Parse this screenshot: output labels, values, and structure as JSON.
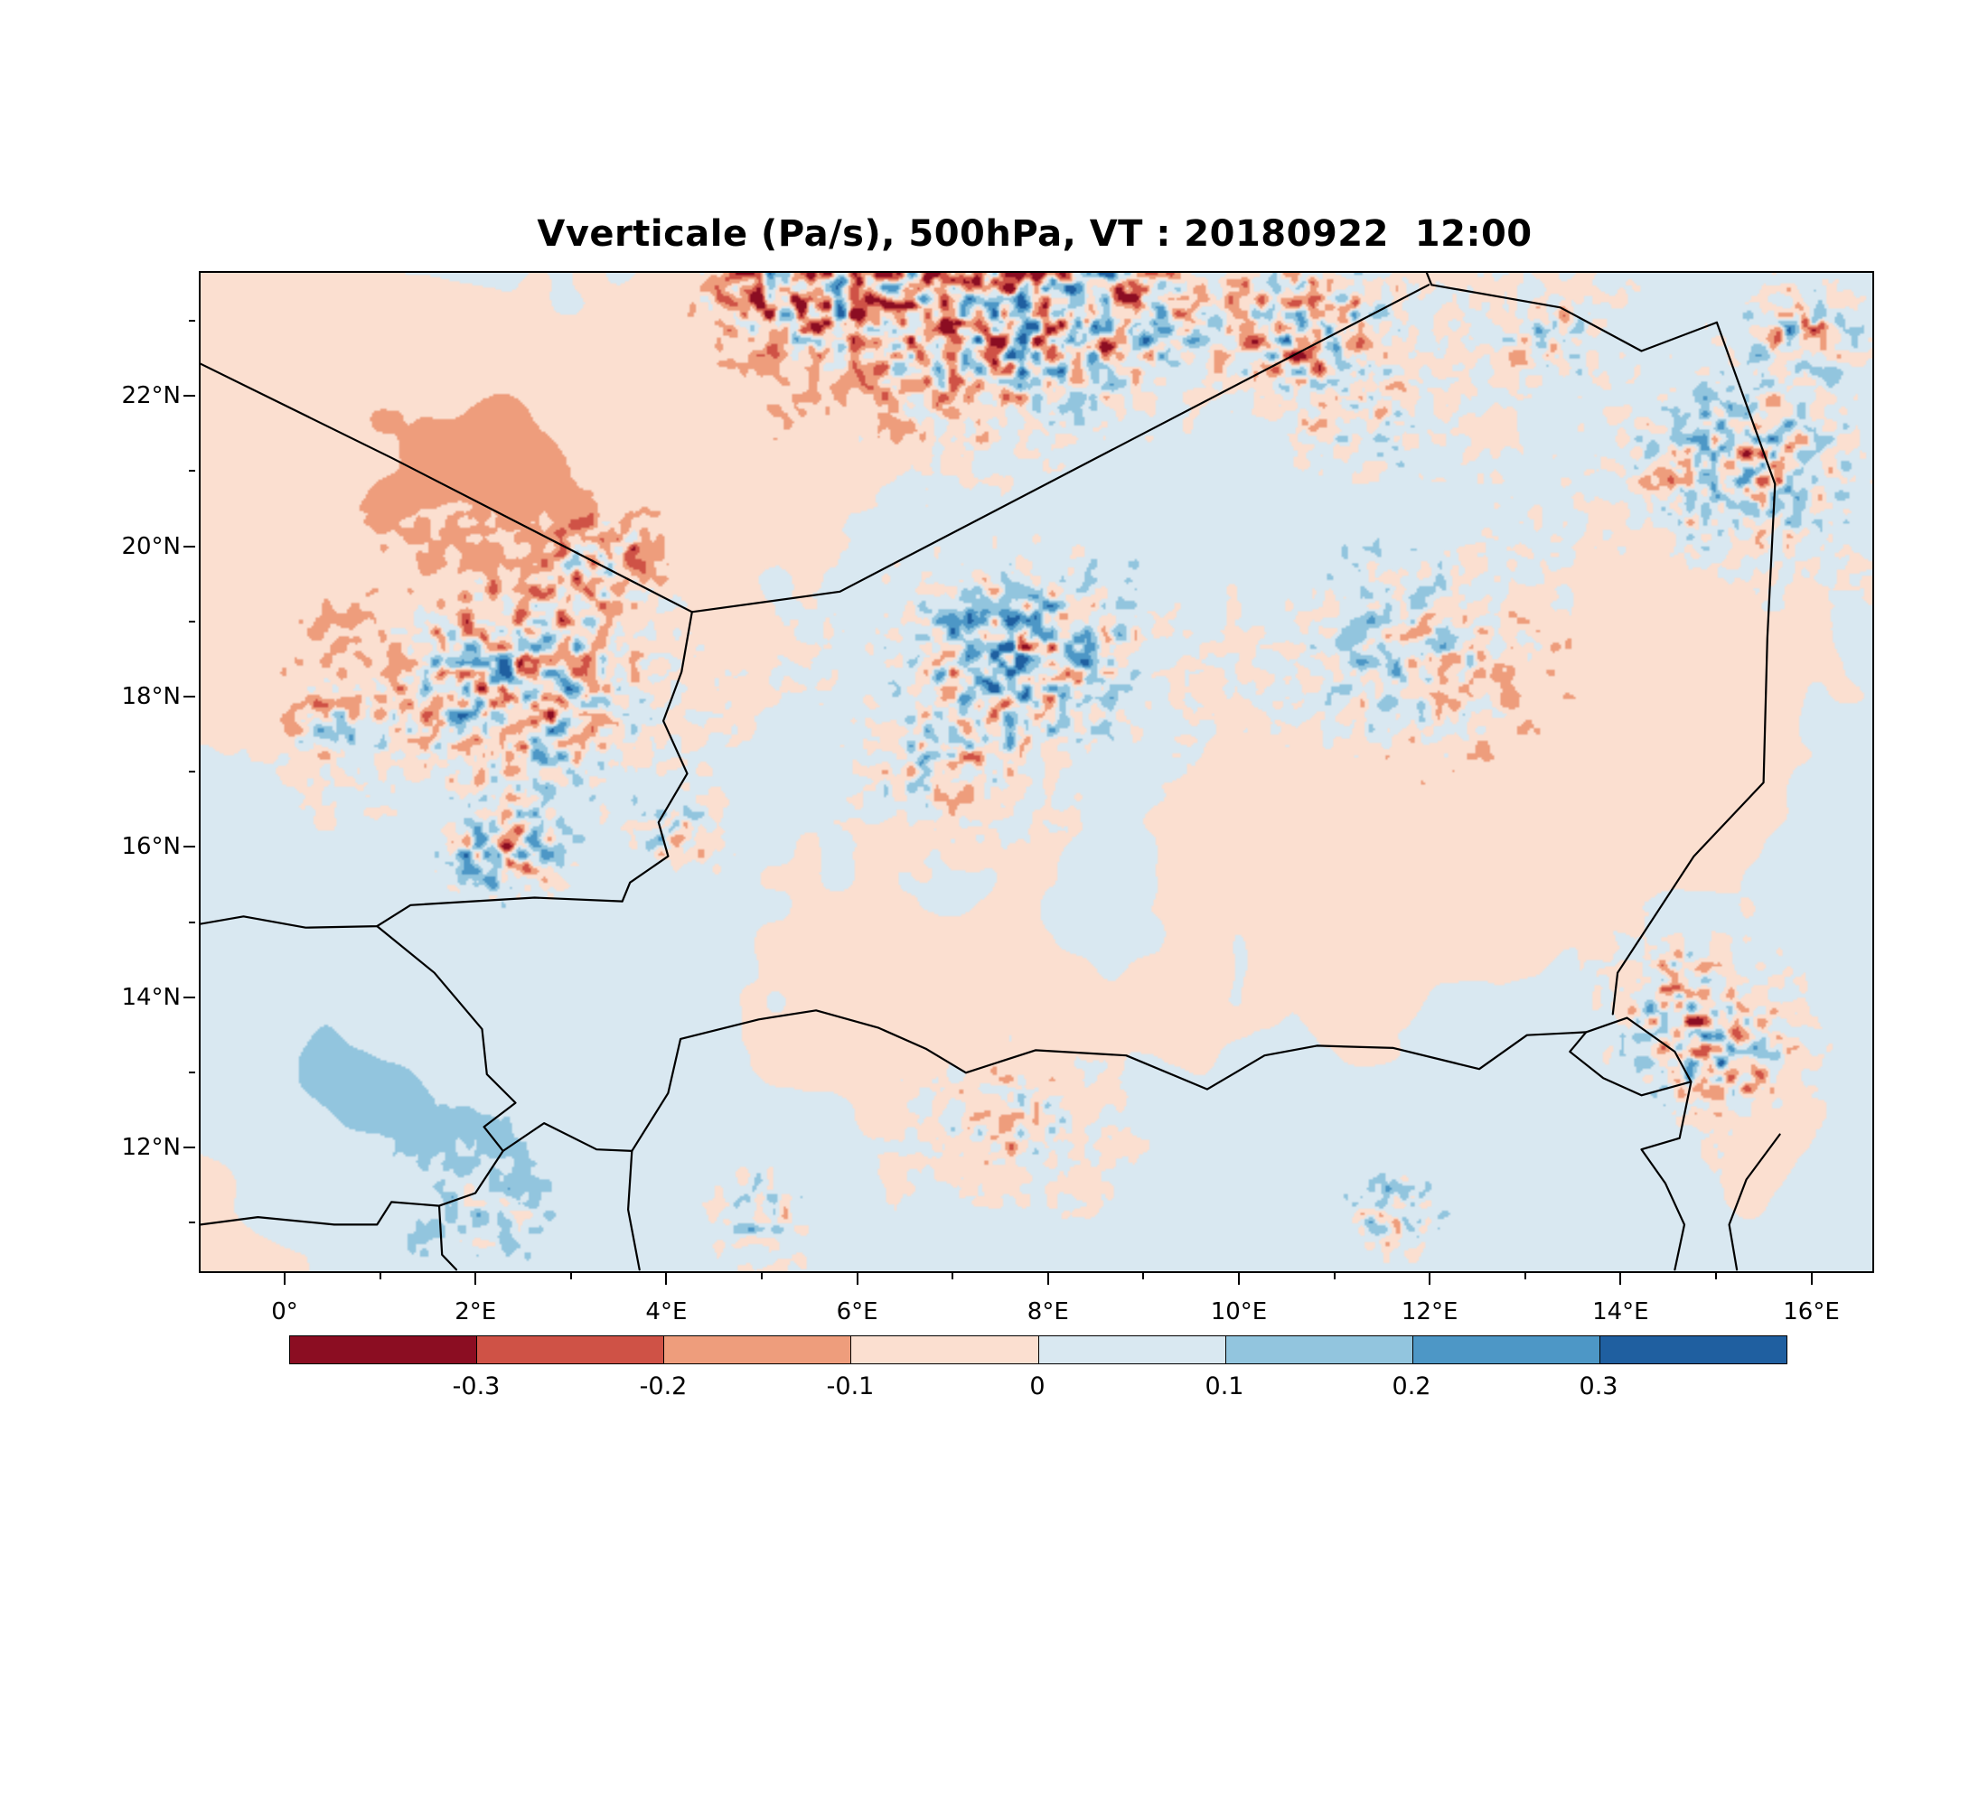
{
  "page": {
    "background": "#ffffff"
  },
  "chart_data": {
    "type": "heatmap",
    "title": "Vverticale (Pa/s), 500hPa, VT : 20180922  12:00",
    "variable": "Vverticale",
    "units": "Pa/s",
    "level": "500hPa",
    "valid_time": "20180922 12:00",
    "legend_position": "bottom",
    "grid": false,
    "extent": {
      "lon_min": -0.9,
      "lon_max": 16.62,
      "lat_min": 10.38,
      "lat_max": 23.66
    },
    "x_axis": {
      "ticks": [
        {
          "value": 0,
          "label": "0°"
        },
        {
          "value": 2,
          "label": "2°E"
        },
        {
          "value": 4,
          "label": "4°E"
        },
        {
          "value": 6,
          "label": "6°E"
        },
        {
          "value": 8,
          "label": "8°E"
        },
        {
          "value": 10,
          "label": "10°E"
        },
        {
          "value": 12,
          "label": "12°E"
        },
        {
          "value": 14,
          "label": "14°E"
        },
        {
          "value": 16,
          "label": "16°E"
        }
      ],
      "minor_ticks": [
        1,
        3,
        5,
        7,
        9,
        11,
        13,
        15
      ]
    },
    "y_axis": {
      "ticks": [
        {
          "value": 12,
          "label": "12°N"
        },
        {
          "value": 14,
          "label": "14°N"
        },
        {
          "value": 16,
          "label": "16°N"
        },
        {
          "value": 18,
          "label": "18°N"
        },
        {
          "value": 20,
          "label": "20°N"
        },
        {
          "value": 22,
          "label": "22°N"
        }
      ],
      "minor_ticks": [
        11,
        13,
        15,
        17,
        19,
        21,
        23
      ]
    },
    "colorbar": {
      "levels": [
        -0.3,
        -0.2,
        -0.1,
        0,
        0.1,
        0.2,
        0.3
      ],
      "tick_labels": [
        "-0.3",
        "-0.2",
        "-0.1",
        "0",
        "0.1",
        "0.2",
        "0.3"
      ],
      "colors": [
        "#8b0d22",
        "#cf5246",
        "#ee9d7c",
        "#fbdfd0",
        "#d9e8f1",
        "#92c5de",
        "#4d97c6",
        "#1f5fa0"
      ]
    },
    "field": {
      "base_scale": 0.105,
      "speckle_scale": 0.55,
      "base_octaves": [
        {
          "freq": 6,
          "amp": 0.45,
          "seed": 11
        },
        {
          "freq": 13,
          "amp": 0.3,
          "seed": 12
        },
        {
          "freq": 27,
          "amp": 0.18,
          "seed": 13
        },
        {
          "freq": 55,
          "amp": 0.1,
          "seed": 14
        }
      ],
      "speckle_octaves": [
        {
          "freq": 120,
          "amp": 0.6,
          "seed": 51
        },
        {
          "freq": 200,
          "amp": 0.4,
          "seed": 52
        }
      ],
      "clusters": [
        {
          "lon": 7.2,
          "lat": 23.35,
          "r": 1.6,
          "amp": 1.1
        },
        {
          "lon": 5.3,
          "lat": 23.45,
          "r": 0.8,
          "amp": 1.0
        },
        {
          "lon": 8.6,
          "lat": 23.1,
          "r": 0.8,
          "amp": 0.8
        },
        {
          "lon": 10.7,
          "lat": 22.95,
          "r": 0.95,
          "amp": 0.9
        },
        {
          "lon": 13.2,
          "lat": 22.85,
          "r": 0.6,
          "amp": 0.55
        },
        {
          "lon": 15.9,
          "lat": 22.9,
          "r": 0.55,
          "amp": 0.85
        },
        {
          "lon": 15.25,
          "lat": 21.1,
          "r": 1.05,
          "amp": 0.9
        },
        {
          "lon": 11.3,
          "lat": 21.6,
          "r": 0.7,
          "amp": 0.45
        },
        {
          "lon": 2.4,
          "lat": 18.15,
          "r": 1.35,
          "amp": 0.95
        },
        {
          "lon": 0.4,
          "lat": 17.6,
          "r": 0.5,
          "amp": 0.5
        },
        {
          "lon": 3.3,
          "lat": 19.9,
          "r": 0.55,
          "amp": 0.7
        },
        {
          "lon": 7.7,
          "lat": 18.5,
          "r": 1.15,
          "amp": 1.0
        },
        {
          "lon": 6.8,
          "lat": 17.1,
          "r": 0.7,
          "amp": 0.5
        },
        {
          "lon": 11.9,
          "lat": 18.55,
          "r": 1.3,
          "amp": 0.55
        },
        {
          "lon": 2.3,
          "lat": 15.9,
          "r": 0.55,
          "amp": 0.95
        },
        {
          "lon": 4.1,
          "lat": 16.15,
          "r": 0.4,
          "amp": 0.7
        },
        {
          "lon": 14.95,
          "lat": 13.35,
          "r": 0.8,
          "amp": 0.95
        },
        {
          "lon": 14.4,
          "lat": 14.2,
          "r": 0.5,
          "amp": 0.6
        },
        {
          "lon": 11.6,
          "lat": 11.15,
          "r": 0.45,
          "amp": 0.8
        },
        {
          "lon": 7.6,
          "lat": 12.35,
          "r": 0.8,
          "amp": 0.5
        },
        {
          "lon": 4.9,
          "lat": 11.15,
          "r": 0.5,
          "amp": 0.6
        },
        {
          "lon": 2.1,
          "lat": 11.3,
          "r": 0.7,
          "amp": 0.45
        }
      ],
      "biases": [
        {
          "lon": 1.3,
          "lat": 22.3,
          "r": 2.0,
          "amp": -0.085
        },
        {
          "lon": 2.6,
          "lat": 20.6,
          "r": 1.6,
          "amp": -0.06
        },
        {
          "lon": 0.8,
          "lat": 18.8,
          "r": 2.2,
          "amp": -0.045
        },
        {
          "lon": 6.3,
          "lat": 23.4,
          "r": 1.8,
          "amp": -0.08
        },
        {
          "lon": 5.3,
          "lat": 21.3,
          "r": 1.1,
          "amp": -0.06
        },
        {
          "lon": 1.6,
          "lat": 12.3,
          "r": 2.4,
          "amp": 0.085
        },
        {
          "lon": 0.0,
          "lat": 13.0,
          "r": 1.5,
          "amp": 0.06
        },
        {
          "lon": 8.8,
          "lat": 12.1,
          "r": 2.4,
          "amp": 0.045
        },
        {
          "lon": 12.6,
          "lat": 16.4,
          "r": 1.4,
          "amp": -0.05
        },
        {
          "lon": 9.5,
          "lat": 20.0,
          "r": 2.5,
          "amp": 0.03
        },
        {
          "lon": 14.6,
          "lat": 17.5,
          "r": 1.5,
          "amp": -0.04
        },
        {
          "lon": 12.0,
          "lat": 12.1,
          "r": 1.6,
          "amp": 0.05
        },
        {
          "lon": 15.6,
          "lat": 12.6,
          "r": 0.9,
          "amp": -0.05
        }
      ]
    },
    "borders": [
      {
        "name": "algeria-mali",
        "points": [
          [
            -0.9,
            22.45
          ],
          [
            1.1,
            21.2
          ],
          [
            4.25,
            19.15
          ]
        ]
      },
      {
        "name": "mali-niger-west",
        "points": [
          [
            4.25,
            19.15
          ],
          [
            4.14,
            18.35
          ],
          [
            3.95,
            17.7
          ],
          [
            4.2,
            17.0
          ],
          [
            3.9,
            16.35
          ],
          [
            4.0,
            15.9
          ],
          [
            3.6,
            15.55
          ],
          [
            3.52,
            15.3
          ]
        ]
      },
      {
        "name": "mali-niger-burkina-north",
        "points": [
          [
            3.52,
            15.3
          ],
          [
            2.6,
            15.35
          ],
          [
            1.95,
            15.3
          ],
          [
            1.3,
            15.25
          ],
          [
            0.95,
            14.97
          ],
          [
            0.2,
            14.95
          ],
          [
            -0.45,
            15.1
          ],
          [
            -0.9,
            15.0
          ]
        ]
      },
      {
        "name": "burkina-niger",
        "points": [
          [
            0.95,
            14.97
          ],
          [
            1.55,
            14.35
          ],
          [
            2.05,
            13.6
          ],
          [
            2.1,
            13.0
          ],
          [
            2.4,
            12.62
          ],
          [
            2.07,
            12.3
          ],
          [
            2.27,
            11.98
          ]
        ]
      },
      {
        "name": "niger-benin",
        "points": [
          [
            2.27,
            11.98
          ],
          [
            2.7,
            12.35
          ],
          [
            3.25,
            12.0
          ],
          [
            3.62,
            11.98
          ]
        ]
      },
      {
        "name": "benin-nigeria",
        "points": [
          [
            3.62,
            11.98
          ],
          [
            3.58,
            11.2
          ],
          [
            3.7,
            10.4
          ]
        ]
      },
      {
        "name": "niger-nigeria",
        "points": [
          [
            3.62,
            11.98
          ],
          [
            4.0,
            12.75
          ],
          [
            4.13,
            13.47
          ],
          [
            4.95,
            13.73
          ],
          [
            5.55,
            13.85
          ],
          [
            6.2,
            13.62
          ],
          [
            6.7,
            13.34
          ],
          [
            7.12,
            13.02
          ],
          [
            7.85,
            13.32
          ],
          [
            8.8,
            13.25
          ],
          [
            9.65,
            12.8
          ],
          [
            10.25,
            13.25
          ],
          [
            10.8,
            13.38
          ],
          [
            11.6,
            13.35
          ],
          [
            12.5,
            13.07
          ],
          [
            13.0,
            13.52
          ],
          [
            13.62,
            13.56
          ]
        ]
      },
      {
        "name": "lake-chad",
        "points": [
          [
            13.62,
            13.56
          ],
          [
            14.05,
            13.75
          ],
          [
            14.55,
            13.3
          ],
          [
            14.72,
            12.9
          ],
          [
            14.2,
            12.72
          ],
          [
            13.8,
            12.95
          ],
          [
            13.45,
            13.3
          ],
          [
            13.62,
            13.56
          ]
        ]
      },
      {
        "name": "niger-chad",
        "points": [
          [
            14.99,
            23.0
          ],
          [
            15.6,
            20.85
          ],
          [
            15.52,
            18.8
          ],
          [
            15.48,
            16.88
          ],
          [
            14.75,
            15.9
          ],
          [
            13.95,
            14.35
          ],
          [
            13.9,
            13.8
          ]
        ]
      },
      {
        "name": "libya-niger",
        "points": [
          [
            11.95,
            23.66
          ],
          [
            12.0,
            23.5
          ],
          [
            13.35,
            23.2
          ],
          [
            14.2,
            22.62
          ],
          [
            14.99,
            23.0
          ]
        ]
      },
      {
        "name": "algeria-niger",
        "points": [
          [
            4.25,
            19.15
          ],
          [
            5.8,
            19.42
          ],
          [
            11.97,
            23.5
          ]
        ]
      },
      {
        "name": "chad-cameroon-nigeria",
        "points": [
          [
            14.72,
            12.9
          ],
          [
            14.6,
            12.15
          ],
          [
            14.2,
            12.0
          ],
          [
            14.45,
            11.55
          ],
          [
            14.65,
            11.0
          ],
          [
            14.55,
            10.4
          ]
        ]
      },
      {
        "name": "chad-cameroon-east",
        "points": [
          [
            15.65,
            12.2
          ],
          [
            15.3,
            11.6
          ],
          [
            15.12,
            11.0
          ],
          [
            15.2,
            10.4
          ]
        ]
      },
      {
        "name": "burkina-south",
        "points": [
          [
            -0.9,
            11.0
          ],
          [
            -0.3,
            11.1
          ],
          [
            0.5,
            11.0
          ],
          [
            0.95,
            11.0
          ],
          [
            1.1,
            11.3
          ],
          [
            1.6,
            11.25
          ],
          [
            1.98,
            11.42
          ],
          [
            2.27,
            11.98
          ]
        ]
      },
      {
        "name": "togo-benin",
        "points": [
          [
            1.6,
            11.25
          ],
          [
            1.63,
            10.6
          ],
          [
            1.78,
            10.4
          ]
        ]
      }
    ]
  }
}
